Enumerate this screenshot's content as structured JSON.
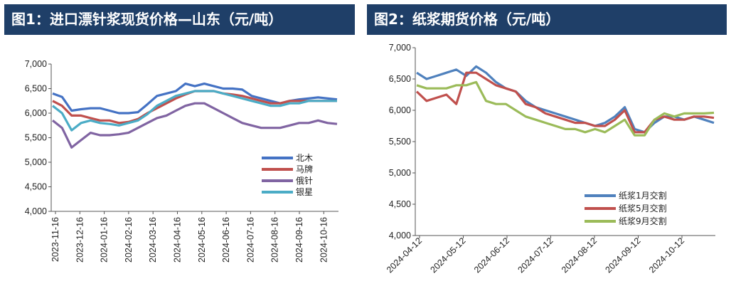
{
  "charts": [
    {
      "title": "图1：进口漂针浆现货价格—山东（元/吨）",
      "chart_data": {
        "type": "line",
        "ylim": [
          4000,
          7000
        ],
        "yticks": [
          "7,000",
          "6,500",
          "6,000",
          "5,500",
          "5,000",
          "4,500",
          "4,000"
        ],
        "xticks": [
          "2023-11-16",
          "2023-12-16",
          "2024-01-16",
          "2024-02-16",
          "2024-03-16",
          "2024-04-16",
          "2024-05-16",
          "2024-06-16",
          "2024-07-16",
          "2024-08-16",
          "2024-09-16",
          "2024-10-16"
        ],
        "legend_position": "right",
        "series": [
          {
            "name": "北木",
            "color": "#4472c4",
            "values": [
              6400,
              6330,
              6050,
              6080,
              6100,
              6100,
              6050,
              6000,
              6000,
              6020,
              6180,
              6350,
              6400,
              6450,
              6600,
              6550,
              6600,
              6550,
              6500,
              6500,
              6480,
              6350,
              6300,
              6250,
              6200,
              6250,
              6280,
              6300,
              6320,
              6300,
              6280
            ]
          },
          {
            "name": "马牌",
            "color": "#c0504d",
            "values": [
              6250,
              6150,
              5950,
              5950,
              5900,
              5850,
              5850,
              5800,
              5820,
              5880,
              6000,
              6100,
              6200,
              6300,
              6380,
              6450,
              6450,
              6450,
              6400,
              6380,
              6350,
              6300,
              6250,
              6200,
              6200,
              6250,
              6250,
              6250,
              6250,
              6250,
              6250
            ]
          },
          {
            "name": "俄针",
            "color": "#8064a2",
            "values": [
              5850,
              5700,
              5300,
              5450,
              5600,
              5550,
              5550,
              5570,
              5600,
              5700,
              5800,
              5900,
              5950,
              6050,
              6150,
              6200,
              6200,
              6100,
              6000,
              5900,
              5800,
              5750,
              5700,
              5700,
              5700,
              5750,
              5800,
              5800,
              5850,
              5800,
              5780
            ]
          },
          {
            "name": "银星",
            "color": "#4bacc6",
            "values": [
              6150,
              6000,
              5650,
              5800,
              5850,
              5800,
              5780,
              5750,
              5800,
              5850,
              5980,
              6150,
              6250,
              6350,
              6400,
              6450,
              6450,
              6450,
              6400,
              6350,
              6300,
              6250,
              6200,
              6150,
              6150,
              6200,
              6200,
              6250,
              6250,
              6250,
              6250
            ]
          }
        ]
      }
    },
    {
      "title": "图2：纸浆期货价格（元/吨）",
      "chart_data": {
        "type": "line",
        "ylim": [
          4000,
          7000
        ],
        "yticks": [
          "7,000",
          "6,500",
          "6,000",
          "5,500",
          "5,000",
          "4,500",
          "4,000"
        ],
        "xticks": [
          "2024-04-12",
          "2024-05-12",
          "2024-06-12",
          "2024-07-12",
          "2024-08-12",
          "2024-09-12",
          "2024-10-12"
        ],
        "legend_position": "bottom-right",
        "series": [
          {
            "name": "纸浆1月交割",
            "color": "#4f81bd",
            "values": [
              6600,
              6500,
              6550,
              6600,
              6650,
              6550,
              6700,
              6600,
              6450,
              6350,
              6300,
              6150,
              6050,
              6000,
              5950,
              5900,
              5850,
              5800,
              5750,
              5800,
              5900,
              6050,
              5700,
              5650,
              5800,
              5900,
              5900,
              5850,
              5900,
              5850,
              5800
            ]
          },
          {
            "name": "纸浆5月交割",
            "color": "#c0504d",
            "values": [
              6300,
              6150,
              6200,
              6250,
              6100,
              6600,
              6600,
              6500,
              6400,
              6350,
              6300,
              6100,
              6050,
              5950,
              5900,
              5850,
              5800,
              5800,
              5750,
              5750,
              5850,
              6000,
              5650,
              5650,
              5850,
              5900,
              5850,
              5850,
              5900,
              5900,
              5880
            ]
          },
          {
            "name": "纸浆9月交割",
            "color": "#9bbb59",
            "values": [
              6400,
              6350,
              6350,
              6350,
              6400,
              6400,
              6450,
              6150,
              6100,
              6100,
              6000,
              5900,
              5850,
              5800,
              5750,
              5700,
              5700,
              5650,
              5700,
              5650,
              5750,
              5850,
              5600,
              5600,
              5850,
              5950,
              5900,
              5950,
              5950,
              5950,
              5960
            ]
          }
        ]
      }
    }
  ]
}
